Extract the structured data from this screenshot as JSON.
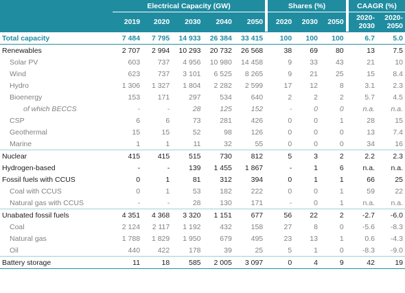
{
  "header": {
    "group_capacity": "Electrical Capacity (GW)",
    "group_shares": "Shares (%)",
    "group_cagr": "CAAGR (%)",
    "years": [
      "2019",
      "2020",
      "2030",
      "2040",
      "2050"
    ],
    "share_years": [
      "2020",
      "2030",
      "2050"
    ],
    "cagr_1_top": "2020-",
    "cagr_1_bottom": "2030",
    "cagr_2_top": "2020-",
    "cagr_2_bottom": "2050"
  },
  "rows": [
    {
      "label": "Total capacity",
      "cap": [
        "7 484",
        "7 795",
        "14 933",
        "26 384",
        "33 415"
      ],
      "shares": [
        "100",
        "100",
        "100"
      ],
      "cagr": [
        "6.7",
        "5.0"
      ]
    },
    {
      "label": "Renewables",
      "cap": [
        "2 707",
        "2 994",
        "10 293",
        "20 732",
        "26 568"
      ],
      "shares": [
        "38",
        "69",
        "80"
      ],
      "cagr": [
        "13",
        "7.5"
      ]
    },
    {
      "label": "Solar PV",
      "cap": [
        "603",
        "737",
        "4 956",
        "10 980",
        "14 458"
      ],
      "shares": [
        "9",
        "33",
        "43"
      ],
      "cagr": [
        "21",
        "10"
      ]
    },
    {
      "label": "Wind",
      "cap": [
        "623",
        "737",
        "3 101",
        "6 525",
        "8 265"
      ],
      "shares": [
        "9",
        "21",
        "25"
      ],
      "cagr": [
        "15",
        "8.4"
      ]
    },
    {
      "label": "Hydro",
      "cap": [
        "1 306",
        "1 327",
        "1 804",
        "2 282",
        "2 599"
      ],
      "shares": [
        "17",
        "12",
        "8"
      ],
      "cagr": [
        "3.1",
        "2.3"
      ]
    },
    {
      "label": "Bioenergy",
      "cap": [
        "153",
        "171",
        "297",
        "534",
        "640"
      ],
      "shares": [
        "2",
        "2",
        "2"
      ],
      "cagr": [
        "5.7",
        "4.5"
      ]
    },
    {
      "label": "of which BECCS",
      "cap": [
        "-",
        "-",
        "28",
        "125",
        "152"
      ],
      "shares": [
        "-",
        "0",
        "0"
      ],
      "cagr": [
        "n.a.",
        "n.a."
      ]
    },
    {
      "label": "CSP",
      "cap": [
        "6",
        "6",
        "73",
        "281",
        "426"
      ],
      "shares": [
        "0",
        "0",
        "1"
      ],
      "cagr": [
        "28",
        "15"
      ]
    },
    {
      "label": "Geothermal",
      "cap": [
        "15",
        "15",
        "52",
        "98",
        "126"
      ],
      "shares": [
        "0",
        "0",
        "0"
      ],
      "cagr": [
        "13",
        "7.4"
      ]
    },
    {
      "label": "Marine",
      "cap": [
        "1",
        "1",
        "11",
        "32",
        "55"
      ],
      "shares": [
        "0",
        "0",
        "0"
      ],
      "cagr": [
        "34",
        "16"
      ]
    },
    {
      "label": "Nuclear",
      "cap": [
        "415",
        "415",
        "515",
        "730",
        "812"
      ],
      "shares": [
        "5",
        "3",
        "2"
      ],
      "cagr": [
        "2.2",
        "2.3"
      ]
    },
    {
      "label": "Hydrogen-based",
      "cap": [
        "-",
        "-",
        "139",
        "1 455",
        "1 867"
      ],
      "shares": [
        "-",
        "1",
        "6"
      ],
      "cagr": [
        "n.a.",
        "n.a."
      ]
    },
    {
      "label": "Fossil fuels with CCUS",
      "cap": [
        "0",
        "1",
        "81",
        "312",
        "394"
      ],
      "shares": [
        "0",
        "1",
        "1"
      ],
      "cagr": [
        "66",
        "25"
      ]
    },
    {
      "label": "Coal with CCUS",
      "cap": [
        "0",
        "1",
        "53",
        "182",
        "222"
      ],
      "shares": [
        "0",
        "0",
        "1"
      ],
      "cagr": [
        "59",
        "22"
      ]
    },
    {
      "label": "Natural gas with CCUS",
      "cap": [
        "-",
        "-",
        "28",
        "130",
        "171"
      ],
      "shares": [
        "-",
        "0",
        "1"
      ],
      "cagr": [
        "n.a.",
        "n.a."
      ]
    },
    {
      "label": "Unabated fossil fuels",
      "cap": [
        "4 351",
        "4 368",
        "3 320",
        "1 151",
        "677"
      ],
      "shares": [
        "56",
        "22",
        "2"
      ],
      "cagr": [
        "-2.7",
        "-6.0"
      ]
    },
    {
      "label": "Coal",
      "cap": [
        "2 124",
        "2 117",
        "1 192",
        "432",
        "158"
      ],
      "shares": [
        "27",
        "8",
        "0"
      ],
      "cagr": [
        "-5.6",
        "-8.3"
      ]
    },
    {
      "label": "Natural gas",
      "cap": [
        "1 788",
        "1 829",
        "1 950",
        "679",
        "495"
      ],
      "shares": [
        "23",
        "13",
        "1"
      ],
      "cagr": [
        "0.6",
        "-4.3"
      ]
    },
    {
      "label": "Oil",
      "cap": [
        "440",
        "422",
        "178",
        "39",
        "25"
      ],
      "shares": [
        "5",
        "1",
        "0"
      ],
      "cagr": [
        "-8.3",
        "-9.0"
      ]
    },
    {
      "label": "Battery storage",
      "cap": [
        "11",
        "18",
        "585",
        "2 005",
        "3 097"
      ],
      "shares": [
        "0",
        "4",
        "9"
      ],
      "cagr": [
        "42",
        "19"
      ]
    }
  ]
}
